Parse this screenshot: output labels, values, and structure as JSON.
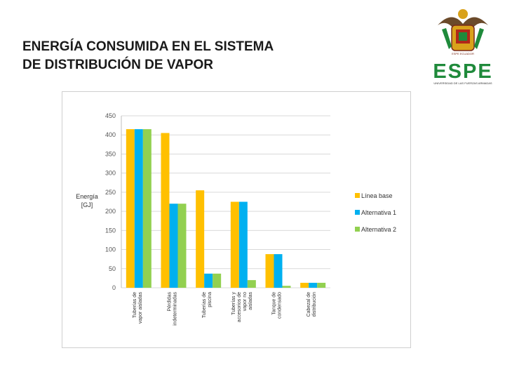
{
  "slide": {
    "title": "ENERGÍA CONSUMIDA EN EL SISTEMA\nDE DISTRIBUCIÓN DE VAPOR"
  },
  "logo": {
    "wordmark": "ESPE",
    "subtitle": "UNIVERSIDAD DE LAS FUERZAS ARMADAS",
    "crest_text": "ESPE ECUADOR",
    "colors": {
      "green": "#1f8a3b",
      "gold": "#d9a21b",
      "red": "#b0281a"
    }
  },
  "chart_data": {
    "type": "bar",
    "title": "",
    "ylabel": "Energía [GJ]",
    "xlabel": "",
    "ylim": [
      0,
      450
    ],
    "yticks": [
      0,
      50,
      100,
      150,
      200,
      250,
      300,
      350,
      400,
      450
    ],
    "grid": true,
    "legend_position": "right",
    "categories": [
      "Tuberías de vapor aisladas",
      "Pérdidas indeterminadas",
      "Tuberías de piscina",
      "Tuberías y accesorios de vapor no aisladas",
      "Tanque de condensado",
      "Cabezal de distribución"
    ],
    "series": [
      {
        "name": "Línea base",
        "color": "#ffc000",
        "values": [
          415,
          405,
          255,
          225,
          88,
          13
        ]
      },
      {
        "name": "Alternativa 1",
        "color": "#00b0f0",
        "values": [
          415,
          220,
          37,
          225,
          88,
          13
        ]
      },
      {
        "name": "Alternativa 2",
        "color": "#92d050",
        "values": [
          415,
          220,
          37,
          20,
          5,
          13
        ]
      }
    ]
  }
}
